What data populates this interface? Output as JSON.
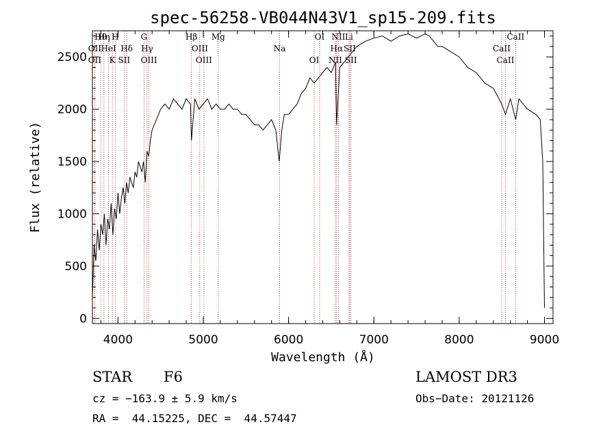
{
  "chart_data": {
    "type": "line",
    "title": "spec-56258-VB044N43V1_sp15-209.fits",
    "xlabel": "Wavelength (Å)",
    "ylabel": "Flux (relative)",
    "xlim": [
      3700,
      9100
    ],
    "ylim": [
      -50,
      2750
    ],
    "x_ticks": [
      4000,
      5000,
      6000,
      7000,
      8000,
      9000
    ],
    "x_tick_labels": [
      "4000",
      "5000",
      "6000",
      "7000",
      "8000",
      "9000"
    ],
    "y_ticks": [
      0,
      500,
      1000,
      1500,
      2000,
      2500
    ],
    "y_tick_labels": [
      "0",
      "500",
      "1000",
      "1500",
      "2000",
      "2500"
    ],
    "grid": false,
    "series": [
      {
        "name": "spectrum",
        "x": [
          3700,
          3720,
          3740,
          3760,
          3780,
          3800,
          3820,
          3840,
          3860,
          3880,
          3900,
          3920,
          3940,
          3960,
          3980,
          4000,
          4020,
          4040,
          4060,
          4080,
          4100,
          4120,
          4140,
          4160,
          4180,
          4200,
          4220,
          4240,
          4260,
          4280,
          4300,
          4320,
          4340,
          4360,
          4380,
          4400,
          4450,
          4500,
          4550,
          4600,
          4650,
          4700,
          4750,
          4800,
          4850,
          4861,
          4900,
          4950,
          5000,
          5050,
          5100,
          5150,
          5200,
          5250,
          5300,
          5350,
          5400,
          5450,
          5500,
          5550,
          5600,
          5650,
          5700,
          5750,
          5800,
          5850,
          5890,
          5920,
          5950,
          6000,
          6050,
          6100,
          6150,
          6200,
          6250,
          6300,
          6350,
          6400,
          6450,
          6500,
          6550,
          6563,
          6600,
          6650,
          6700,
          6750,
          6800,
          6900,
          7000,
          7100,
          7200,
          7300,
          7400,
          7500,
          7550,
          7600,
          7650,
          7700,
          7750,
          7800,
          7900,
          8000,
          8100,
          8200,
          8300,
          8400,
          8498,
          8542,
          8600,
          8662,
          8700,
          8800,
          8900,
          8950,
          8980,
          9000
        ],
        "values": [
          200,
          700,
          550,
          850,
          650,
          900,
          800,
          1000,
          700,
          950,
          850,
          1100,
          800,
          1050,
          950,
          1200,
          1000,
          1150,
          1250,
          1100,
          1300,
          1200,
          1350,
          1300,
          1250,
          1400,
          1350,
          1500,
          1450,
          1400,
          1500,
          1300,
          1600,
          1550,
          1700,
          1800,
          1900,
          2000,
          2050,
          2000,
          2100,
          2050,
          2000,
          2100,
          2050,
          1700,
          2100,
          2000,
          2050,
          2100,
          2000,
          2050,
          2000,
          2000,
          2050,
          2000,
          2000,
          1950,
          1950,
          1900,
          1850,
          1850,
          1800,
          1850,
          1900,
          1800,
          1500,
          1800,
          1950,
          1950,
          2000,
          2050,
          2150,
          2200,
          2300,
          2250,
          2300,
          2350,
          2400,
          2350,
          2450,
          1850,
          2400,
          2450,
          2500,
          2550,
          2600,
          2650,
          2680,
          2700,
          2650,
          2700,
          2720,
          2680,
          2700,
          2720,
          2700,
          2650,
          2600,
          2600,
          2550,
          2500,
          2400,
          2350,
          2250,
          2200,
          2050,
          1950,
          2100,
          1900,
          2100,
          2000,
          1950,
          1900,
          1500,
          100
        ]
      }
    ],
    "lines": [
      {
        "label": "Hθ",
        "wavelength": 3798
      },
      {
        "label": "OII",
        "wavelength": 3727
      },
      {
        "label": "OII",
        "wavelength": 3727
      },
      {
        "label": "Hη",
        "wavelength": 3835
      },
      {
        "label": "HeI",
        "wavelength": 3889
      },
      {
        "label": "K",
        "wavelength": 3934
      },
      {
        "label": "H",
        "wavelength": 3968
      },
      {
        "label": "Hδ",
        "wavelength": 4102
      },
      {
        "label": "SII",
        "wavelength": 4072
      },
      {
        "label": "G",
        "wavelength": 4305
      },
      {
        "label": "Hγ",
        "wavelength": 4341
      },
      {
        "label": "OIII",
        "wavelength": 4363
      },
      {
        "label": "Hβ",
        "wavelength": 4861
      },
      {
        "label": "OIII",
        "wavelength": 4959
      },
      {
        "label": "OIII",
        "wavelength": 5007
      },
      {
        "label": "Mg",
        "wavelength": 5175
      },
      {
        "label": "Na",
        "wavelength": 5894
      },
      {
        "label": "OI",
        "wavelength": 6300
      },
      {
        "label": "OI",
        "wavelength": 6364
      },
      {
        "label": "Hα",
        "wavelength": 6563
      },
      {
        "label": "NII",
        "wavelength": 6548
      },
      {
        "label": "NII",
        "wavelength": 6584
      },
      {
        "label": "SII",
        "wavelength": 6717
      },
      {
        "label": "SII",
        "wavelength": 6731
      },
      {
        "label": "Li",
        "wavelength": 6708
      },
      {
        "label": "CaII",
        "wavelength": 8498
      },
      {
        "label": "CaII",
        "wavelength": 8542
      },
      {
        "label": "CaII",
        "wavelength": 8662
      }
    ]
  },
  "info": {
    "object_class": "STAR",
    "subclass": "F6",
    "survey": "LAMOST DR3",
    "cz": "cz = −163.9 ± 5.9 km/s",
    "obs_date": "Obs−Date: 20121126",
    "coords": "RA =  44.15225, DEC =  44.57447"
  },
  "colors": {
    "line": "#000000",
    "marker": "#cc0000",
    "background": "#ffffff"
  }
}
